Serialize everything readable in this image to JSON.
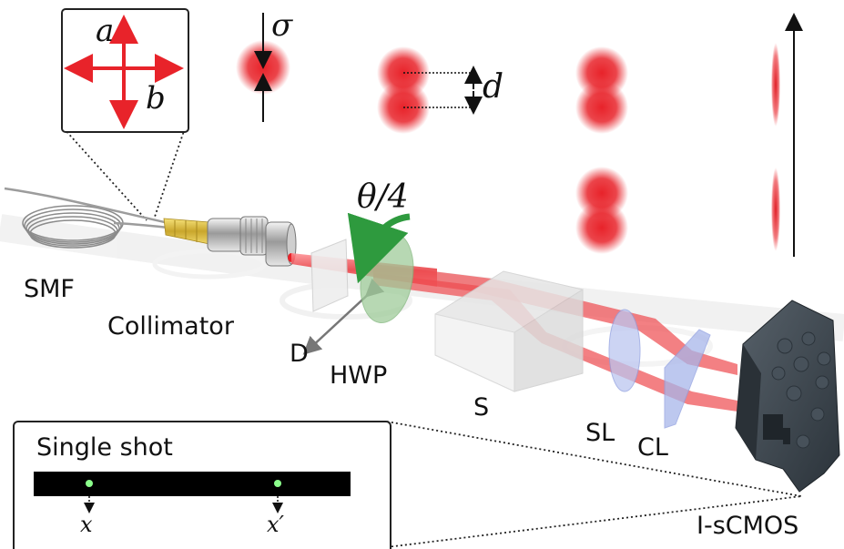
{
  "labels": {
    "smf": "SMF",
    "collimator": "Collimator",
    "d_component": "D",
    "hwp": "HWP",
    "s_component": "S",
    "sl": "SL",
    "cl": "CL",
    "camera": "I-sCMOS",
    "single_shot": "Single shot"
  },
  "math": {
    "a": "a",
    "b": "b",
    "sigma": "σ",
    "d": "d",
    "theta": "θ/4",
    "x": "x",
    "x_prime": "x′"
  },
  "colors": {
    "beam": "#e8232a",
    "waveplate": "#9fcc9a",
    "camera_body": "#3a434b",
    "accent_arrow": "#2e9a3e",
    "connector_gold": "#d9b73a"
  }
}
